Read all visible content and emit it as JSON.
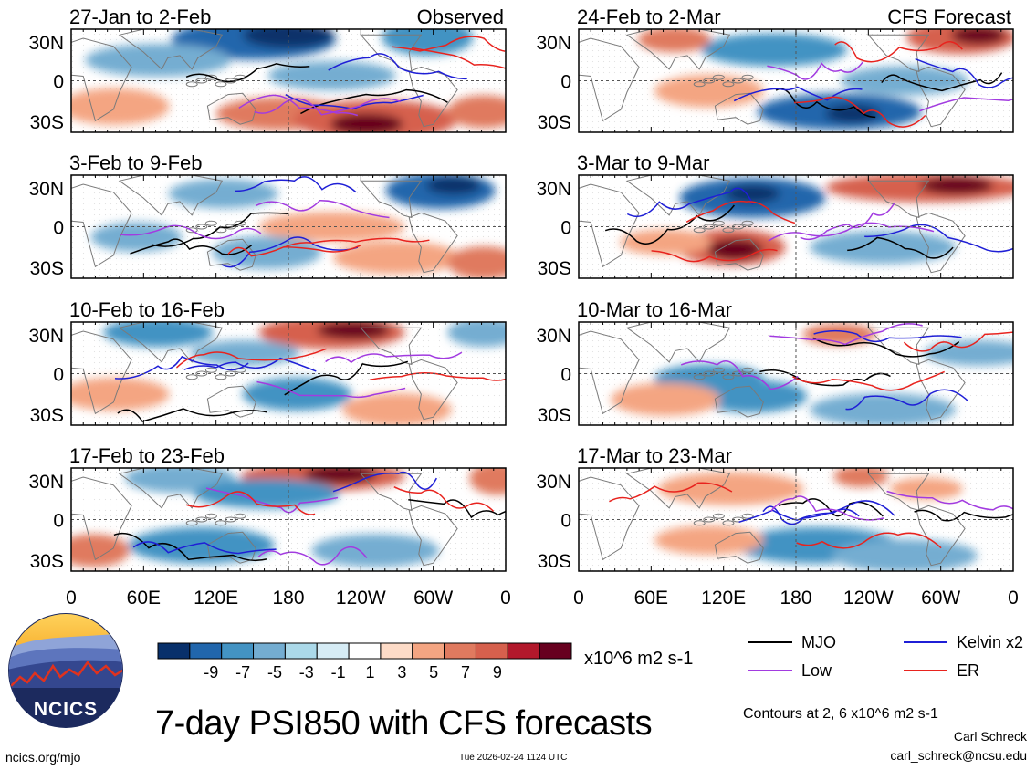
{
  "chart_data": {
    "type": "heatmap",
    "title": "7-day PSI850 with CFS forecasts",
    "units": "x10^6 m2 s-1",
    "contours_note": "Contours at 2, 6 x10^6 m2 s-1",
    "x_ticks": [
      "0",
      "60E",
      "120E",
      "180",
      "120W",
      "60W",
      "0"
    ],
    "y_ticks": [
      "30N",
      "0",
      "30S"
    ],
    "colorbar": {
      "ticks": [
        "-9",
        "-7",
        "-5",
        "-3",
        "-1",
        "1",
        "3",
        "5",
        "7",
        "9"
      ],
      "colors": [
        "#08306b",
        "#2166ac",
        "#4393c3",
        "#74add1",
        "#abd9e9",
        "#d6ecf5",
        "#ffffff",
        "#fddbc7",
        "#f4a582",
        "#e07a5f",
        "#d6604d",
        "#b2182b",
        "#67001f"
      ]
    },
    "legend": [
      {
        "label": "MJO",
        "color": "#000000"
      },
      {
        "label": "Kelvin x2",
        "color": "#1f1fd6"
      },
      {
        "label": "Low",
        "color": "#a23be0"
      },
      {
        "label": "ER",
        "color": "#e8231e"
      }
    ],
    "panels": [
      {
        "title": "27-Jan to 2-Feb",
        "tag": "Observed",
        "column": "observed",
        "row": 0
      },
      {
        "title": "3-Feb to 9-Feb",
        "tag": "",
        "column": "observed",
        "row": 1
      },
      {
        "title": "10-Feb to 16-Feb",
        "tag": "",
        "column": "observed",
        "row": 2
      },
      {
        "title": "17-Feb to 23-Feb",
        "tag": "",
        "column": "observed",
        "row": 3
      },
      {
        "title": "24-Feb to 2-Mar",
        "tag": "CFS Forecast",
        "column": "forecast",
        "row": 0
      },
      {
        "title": "3-Mar to 9-Mar",
        "tag": "",
        "column": "forecast",
        "row": 1
      },
      {
        "title": "10-Mar to 16-Mar",
        "tag": "",
        "column": "forecast",
        "row": 2
      },
      {
        "title": "17-Mar to 23-Mar",
        "tag": "",
        "column": "forecast",
        "row": 3
      }
    ]
  },
  "logo": {
    "text": "NCICS"
  },
  "footer": {
    "site": "ncics.org/mjo",
    "timestamp": "Tue 2026-02-24 1124 UTC",
    "author": "Carl Schreck",
    "email": "carl_schreck@ncsu.edu"
  }
}
